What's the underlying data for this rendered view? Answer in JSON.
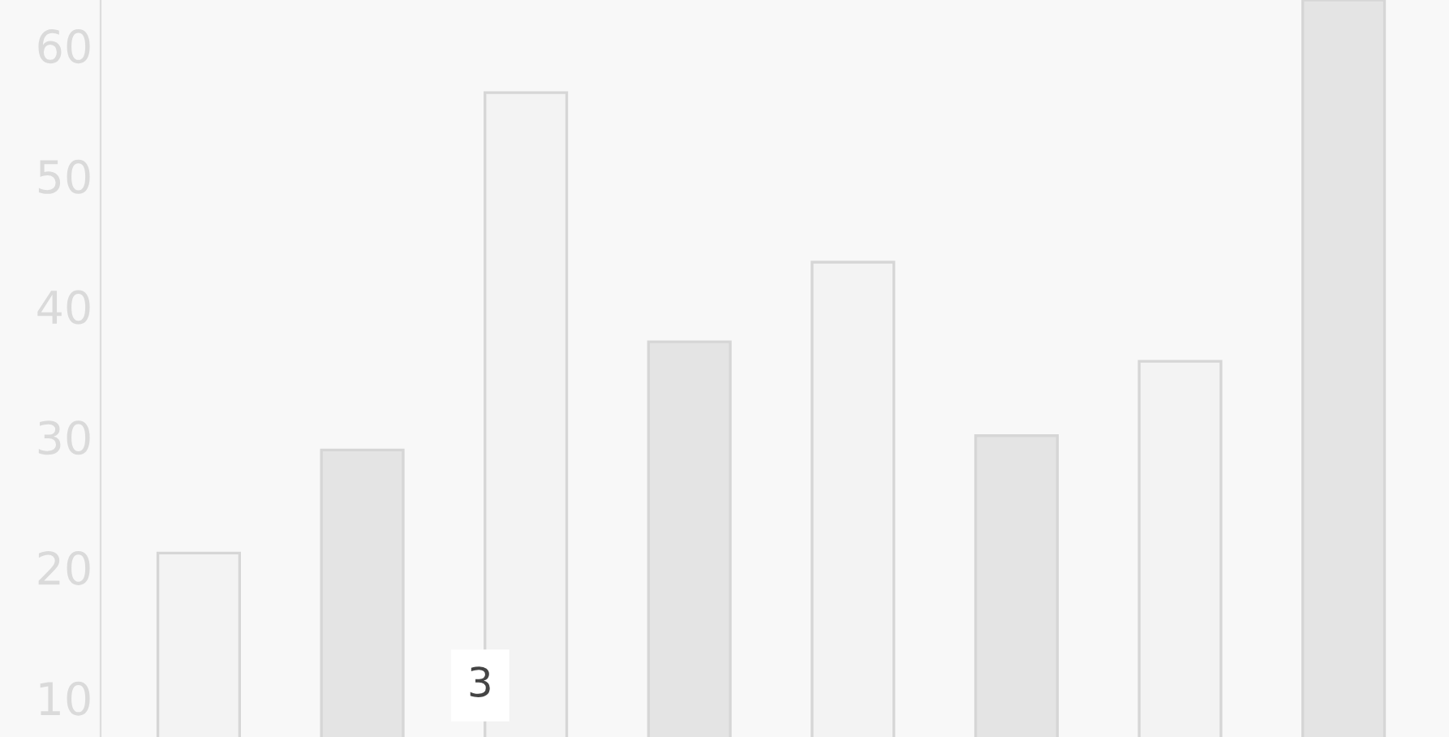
{
  "chart_data": {
    "type": "bar",
    "categories": [
      null,
      null,
      null,
      null,
      null,
      null,
      null,
      null
    ],
    "values": [
      21.1,
      29,
      56.4,
      37.3,
      43.4,
      30.1,
      35.8,
      63.5
    ],
    "colors": [
      "#f3f3f3",
      "#e4e4e4",
      "#f3f3f3",
      "#e4e4e4",
      "#f3f3f3",
      "#e4e4e4",
      "#f3f3f3",
      "#e4e4e4"
    ],
    "ylim": [
      7,
      63.5
    ],
    "yticks": [
      10,
      20,
      30,
      40,
      50,
      60
    ],
    "annotations": [
      "3"
    ],
    "tick_labels": "y",
    "grid": false
  }
}
